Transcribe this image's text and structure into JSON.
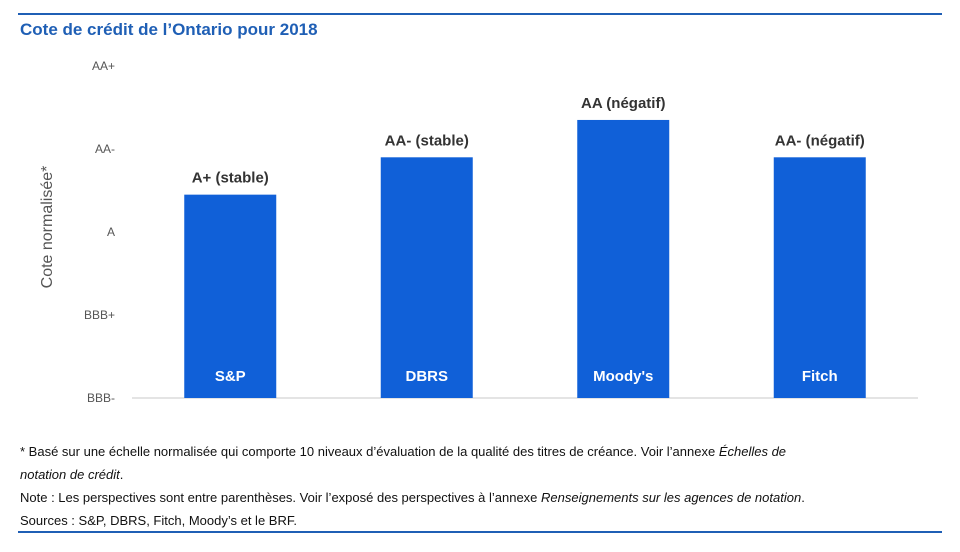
{
  "title": "Cote de crédit de l’Ontario pour 2018",
  "chart_data": {
    "type": "bar",
    "title": "Cote de crédit de l’Ontario pour 2018",
    "ylabel": "Cote normalisée*",
    "xlabel": "",
    "y_scale_labels": [
      "BBB-",
      "BBB+",
      "A",
      "AA-",
      "AA+"
    ],
    "y_scale_values": [
      1,
      3,
      5,
      7,
      9
    ],
    "ylim": [
      1,
      9
    ],
    "categories": [
      "S&P",
      "DBRS",
      "Moody's",
      "Fitch"
    ],
    "values": [
      5.9,
      6.8,
      7.7,
      6.8
    ],
    "data_labels": [
      "A+ (stable)",
      "AA- (stable)",
      "AA (négatif)",
      "AA- (négatif)"
    ],
    "bar_color": "#1060d8",
    "grid": false
  },
  "footnotes": {
    "note1_text": "* Basé sur une échelle normalisée qui comporte 10 niveaux d’évaluation de la qualité des titres de créance. Voir l’annexe ",
    "note1_italic_a": "Échelles de",
    "note1_italic_b": "notation de crédit",
    "note1_end": ".",
    "note2_text": "Note : Les perspectives sont entre parenthèses. Voir l’exposé des perspectives à l’annexe ",
    "note2_italic": "Renseignements sur les agences de notation",
    "note2_end": ".",
    "sources": "Sources : S&P, DBRS, Fitch, Moody’s et le BRF."
  },
  "colors": {
    "accent": "#1f5fb5",
    "bar": "#1060d8"
  }
}
